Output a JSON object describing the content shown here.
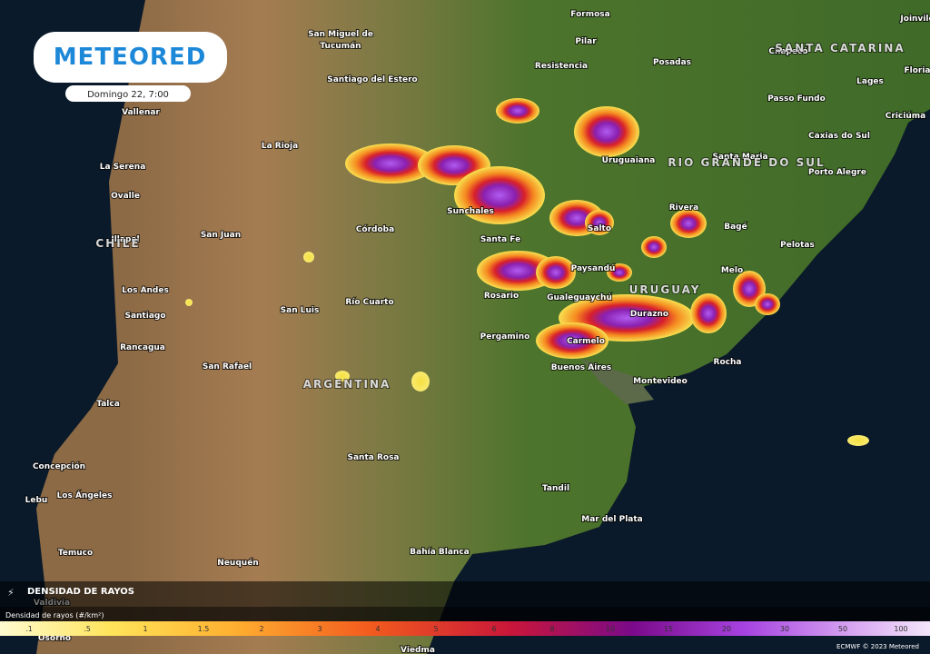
{
  "logo": "METEORED",
  "timestamp": "Domingo 22, 7:00",
  "place_labels": [
    "Formosa",
    "Joinvile",
    "San Miguel de",
    "Tucumán",
    "Pilar",
    "Chapecó",
    "SANTA CATARINA",
    "Floria",
    "Resistencia",
    "Posadas",
    "Santiago del Estero",
    "Lages",
    "Vallenar",
    "Passo Fundo",
    "Criciúma",
    "La Rioja",
    "Caxias do Sul",
    "Uruguaiana",
    "Santa Maria",
    "RIO GRANDE DO SUL",
    "La Serena",
    "Porto Alegre",
    "Ovalle",
    "Sunchales",
    "Rivera",
    "Córdoba",
    "Salto",
    "Bagé",
    "Illapel",
    "CHILE",
    "San Juan",
    "Santa Fe",
    "Pelotas",
    "Paysandú",
    "Melo",
    "Los Andes",
    "Rosario",
    "Gualeguaychú",
    "URUGUAY",
    "Río Cuarto",
    "San Luis",
    "Santiago",
    "Durazno",
    "Rancagua",
    "Pergamino",
    "Carmelo",
    "San Rafael",
    "Buenos Aires",
    "Rocha",
    "Montevideo",
    "ARGENTINA",
    "Talca",
    "Santa Rosa",
    "Concepción",
    "Tandil",
    "Lebu",
    "Los Ángeles",
    "Mar del Plata",
    "Bahía Blanca",
    "Temuco",
    "Neuquén",
    "Valdivia",
    "Osorno",
    "Viedma"
  ],
  "legend": {
    "title": "DENSIDAD DE RAYOS",
    "subtitle": "Densidad de rayos (#/km²)",
    "scale_labels": [
      ".1",
      ".5",
      "1",
      "1.5",
      "2",
      "3",
      "4",
      "5",
      "6",
      "8",
      "10",
      "15",
      "20",
      "30",
      "50",
      "100"
    ]
  },
  "credit": "ECMWF © 2023 Meteored"
}
